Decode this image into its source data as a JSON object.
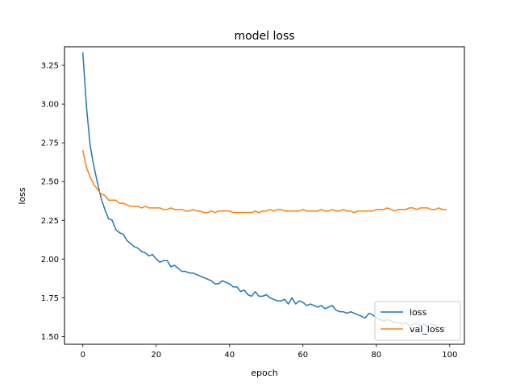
{
  "chart_data": {
    "type": "line",
    "title": "model loss",
    "xlabel": "epoch",
    "ylabel": "loss",
    "xlim": [
      -5,
      104
    ],
    "ylim": [
      1.45,
      3.37
    ],
    "xticks": [
      0,
      20,
      40,
      60,
      80,
      100
    ],
    "xtick_labels": [
      "0",
      "20",
      "40",
      "60",
      "80",
      "100"
    ],
    "yticks": [
      1.5,
      1.75,
      2.0,
      2.25,
      2.5,
      2.75,
      3.0,
      3.25
    ],
    "ytick_labels": [
      "1.50",
      "1.75",
      "2.00",
      "2.25",
      "2.50",
      "2.75",
      "3.00",
      "3.25"
    ],
    "grid": false,
    "legend_position": "lower-right",
    "series": [
      {
        "name": "loss",
        "color": "#1f77b4",
        "x": [
          0,
          1,
          2,
          3,
          4,
          5,
          6,
          7,
          8,
          9,
          10,
          11,
          12,
          13,
          14,
          15,
          16,
          17,
          18,
          19,
          20,
          21,
          22,
          23,
          24,
          25,
          26,
          27,
          28,
          29,
          30,
          31,
          32,
          33,
          34,
          35,
          36,
          37,
          38,
          39,
          40,
          41,
          42,
          43,
          44,
          45,
          46,
          47,
          48,
          49,
          50,
          51,
          52,
          53,
          54,
          55,
          56,
          57,
          58,
          59,
          60,
          61,
          62,
          63,
          64,
          65,
          66,
          67,
          68,
          69,
          70,
          71,
          72,
          73,
          74,
          75,
          76,
          77,
          78,
          79,
          80,
          81,
          82,
          83,
          84,
          85,
          86,
          87,
          88,
          89,
          90,
          91,
          92,
          93,
          94,
          95,
          96,
          97,
          98,
          99
        ],
        "values": [
          3.33,
          2.98,
          2.73,
          2.6,
          2.49,
          2.39,
          2.32,
          2.26,
          2.25,
          2.19,
          2.17,
          2.16,
          2.12,
          2.1,
          2.08,
          2.07,
          2.05,
          2.04,
          2.02,
          2.03,
          2.0,
          1.98,
          1.99,
          1.99,
          1.95,
          1.96,
          1.94,
          1.92,
          1.92,
          1.91,
          1.91,
          1.9,
          1.89,
          1.88,
          1.87,
          1.86,
          1.84,
          1.84,
          1.86,
          1.85,
          1.84,
          1.82,
          1.82,
          1.79,
          1.8,
          1.77,
          1.76,
          1.79,
          1.76,
          1.76,
          1.77,
          1.75,
          1.74,
          1.73,
          1.73,
          1.74,
          1.71,
          1.75,
          1.71,
          1.73,
          1.72,
          1.7,
          1.71,
          1.7,
          1.69,
          1.7,
          1.68,
          1.69,
          1.7,
          1.67,
          1.66,
          1.66,
          1.65,
          1.66,
          1.65,
          1.64,
          1.63,
          1.62,
          1.65,
          1.64,
          1.62,
          1.61,
          1.6,
          1.61,
          1.6,
          1.59,
          1.59,
          1.58,
          1.59,
          1.57,
          1.58,
          1.59,
          1.57,
          1.58,
          1.56,
          1.58,
          1.57,
          1.56,
          1.55,
          1.56
        ]
      },
      {
        "name": "val_loss",
        "color": "#ff7f0e",
        "x": [
          0,
          1,
          2,
          3,
          4,
          5,
          6,
          7,
          8,
          9,
          10,
          11,
          12,
          13,
          14,
          15,
          16,
          17,
          18,
          19,
          20,
          21,
          22,
          23,
          24,
          25,
          26,
          27,
          28,
          29,
          30,
          31,
          32,
          33,
          34,
          35,
          36,
          37,
          38,
          39,
          40,
          41,
          42,
          43,
          44,
          45,
          46,
          47,
          48,
          49,
          50,
          51,
          52,
          53,
          54,
          55,
          56,
          57,
          58,
          59,
          60,
          61,
          62,
          63,
          64,
          65,
          66,
          67,
          68,
          69,
          70,
          71,
          72,
          73,
          74,
          75,
          76,
          77,
          78,
          79,
          80,
          81,
          82,
          83,
          84,
          85,
          86,
          87,
          88,
          89,
          90,
          91,
          92,
          93,
          94,
          95,
          96,
          97,
          98,
          99
        ],
        "values": [
          2.7,
          2.59,
          2.53,
          2.48,
          2.45,
          2.42,
          2.41,
          2.38,
          2.38,
          2.38,
          2.36,
          2.36,
          2.35,
          2.34,
          2.34,
          2.34,
          2.33,
          2.34,
          2.33,
          2.33,
          2.33,
          2.33,
          2.32,
          2.32,
          2.33,
          2.32,
          2.32,
          2.32,
          2.31,
          2.31,
          2.32,
          2.31,
          2.31,
          2.3,
          2.3,
          2.31,
          2.3,
          2.31,
          2.31,
          2.31,
          2.31,
          2.3,
          2.3,
          2.3,
          2.3,
          2.3,
          2.3,
          2.31,
          2.3,
          2.31,
          2.31,
          2.32,
          2.31,
          2.32,
          2.32,
          2.31,
          2.31,
          2.31,
          2.31,
          2.31,
          2.32,
          2.31,
          2.31,
          2.31,
          2.31,
          2.32,
          2.31,
          2.31,
          2.32,
          2.31,
          2.31,
          2.32,
          2.31,
          2.31,
          2.3,
          2.31,
          2.31,
          2.31,
          2.31,
          2.31,
          2.32,
          2.32,
          2.32,
          2.33,
          2.32,
          2.31,
          2.32,
          2.32,
          2.32,
          2.33,
          2.33,
          2.32,
          2.33,
          2.33,
          2.33,
          2.32,
          2.32,
          2.33,
          2.32,
          2.32
        ]
      }
    ]
  }
}
